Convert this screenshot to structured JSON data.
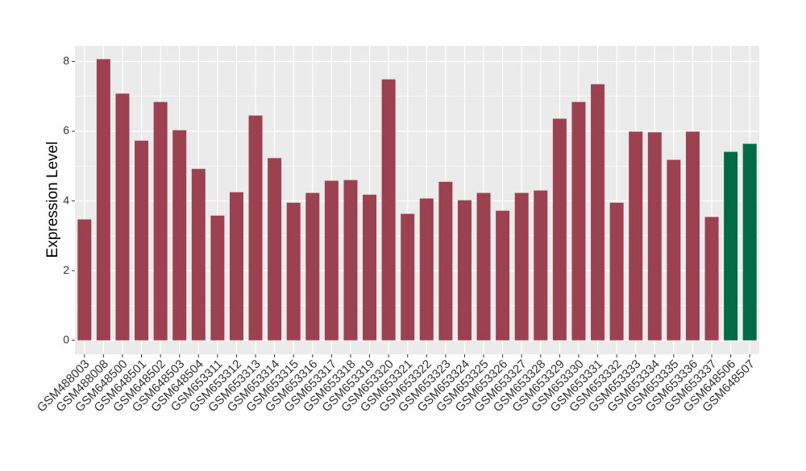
{
  "chart_data": {
    "type": "bar",
    "y_label": "Expression Level",
    "categories": [
      "GSM488003",
      "GSM488008",
      "GSM648500",
      "GSM648501",
      "GSM648502",
      "GSM648503",
      "GSM648504",
      "GSM653311",
      "GSM653312",
      "GSM653313",
      "GSM653314",
      "GSM653315",
      "GSM653316",
      "GSM653317",
      "GSM653318",
      "GSM653319",
      "GSM653320",
      "GSM653321",
      "GSM653322",
      "GSM653323",
      "GSM653324",
      "GSM653325",
      "GSM653326",
      "GSM653327",
      "GSM653328",
      "GSM653329",
      "GSM653330",
      "GSM653331",
      "GSM653332",
      "GSM653333",
      "GSM653334",
      "GSM653335",
      "GSM653336",
      "GSM653337",
      "GSM648506",
      "GSM648507"
    ],
    "values": [
      3.47,
      8.07,
      7.08,
      5.73,
      6.84,
      6.03,
      4.92,
      3.58,
      4.25,
      6.45,
      5.23,
      3.95,
      4.23,
      4.58,
      4.6,
      4.18,
      7.49,
      3.63,
      4.07,
      4.55,
      4.02,
      4.23,
      3.72,
      4.23,
      4.3,
      6.36,
      6.84,
      7.35,
      3.95,
      5.99,
      5.97,
      5.18,
      5.99,
      3.54,
      5.41,
      5.64
    ],
    "colors": [
      "#9b4150",
      "#9b4150",
      "#9b4150",
      "#9b4150",
      "#9b4150",
      "#9b4150",
      "#9b4150",
      "#9b4150",
      "#9b4150",
      "#9b4150",
      "#9b4150",
      "#9b4150",
      "#9b4150",
      "#9b4150",
      "#9b4150",
      "#9b4150",
      "#9b4150",
      "#9b4150",
      "#9b4150",
      "#9b4150",
      "#9b4150",
      "#9b4150",
      "#9b4150",
      "#9b4150",
      "#9b4150",
      "#9b4150",
      "#9b4150",
      "#9b4150",
      "#9b4150",
      "#9b4150",
      "#9b4150",
      "#9b4150",
      "#9b4150",
      "#9b4150",
      "#006b45",
      "#006b45"
    ],
    "ylim": [
      -0.4,
      8.45
    ],
    "yticks": [
      0,
      2,
      4,
      6,
      8
    ],
    "grid": true
  }
}
